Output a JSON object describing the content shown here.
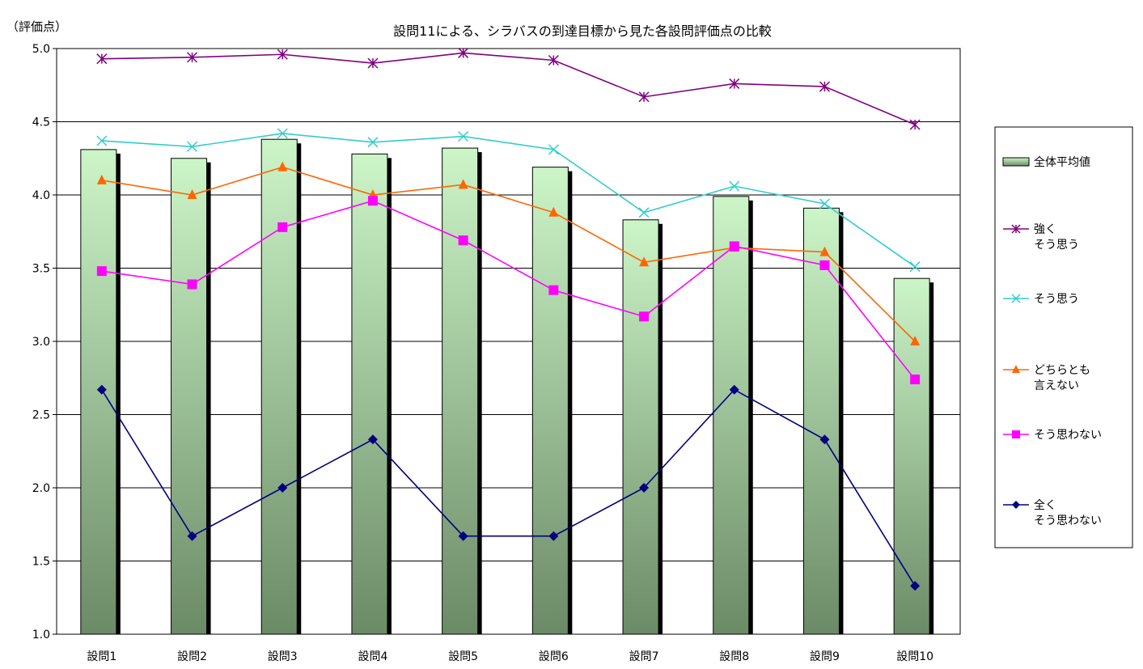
{
  "chart_data": {
    "type": "bar",
    "title": "設問11による、シラバスの到達目標から見た各設問評価点の比較",
    "ylabel": "（評価点）",
    "xlabel": "",
    "ylim": [
      1.0,
      5.0
    ],
    "yticks": [
      "1.0",
      "1.5",
      "2.0",
      "2.5",
      "3.0",
      "3.5",
      "4.0",
      "4.5",
      "5.0"
    ],
    "grid": true,
    "legend_position": "right",
    "categories": [
      "設問1",
      "設問2",
      "設問3",
      "設問4",
      "設問5",
      "設問6",
      "設問7",
      "設問8",
      "設問9",
      "設問10"
    ],
    "bar_series": {
      "name": "全体平均値",
      "values": [
        4.31,
        4.25,
        4.38,
        4.28,
        4.32,
        4.19,
        3.83,
        3.99,
        3.91,
        3.43
      ],
      "color_top": "#ccf5c8",
      "color_bottom": "#6b8a66"
    },
    "series": [
      {
        "name": "強く\nそう思う",
        "marker": "asterisk",
        "color": "#800080",
        "values": [
          4.93,
          4.94,
          4.96,
          4.9,
          4.97,
          4.92,
          4.67,
          4.76,
          4.74,
          4.48
        ]
      },
      {
        "name": "そう思う",
        "marker": "x",
        "color": "#33cccc",
        "values": [
          4.37,
          4.33,
          4.42,
          4.36,
          4.4,
          4.31,
          3.88,
          4.06,
          3.94,
          3.51
        ]
      },
      {
        "name": "どちらとも\n言えない",
        "marker": "triangle",
        "color": "#ff6600",
        "values": [
          4.1,
          4.0,
          4.19,
          4.0,
          4.07,
          3.88,
          3.54,
          3.64,
          3.61,
          3.0
        ]
      },
      {
        "name": "そう思わない",
        "marker": "square",
        "color": "#ff00ff",
        "values": [
          3.48,
          3.39,
          3.78,
          3.96,
          3.69,
          3.35,
          3.17,
          3.65,
          3.52,
          2.74
        ]
      },
      {
        "name": "全く\nそう思わない",
        "marker": "diamond",
        "color": "#000080",
        "values": [
          2.67,
          1.67,
          2.0,
          2.33,
          1.67,
          1.67,
          2.0,
          2.67,
          2.33,
          1.33
        ]
      }
    ]
  }
}
